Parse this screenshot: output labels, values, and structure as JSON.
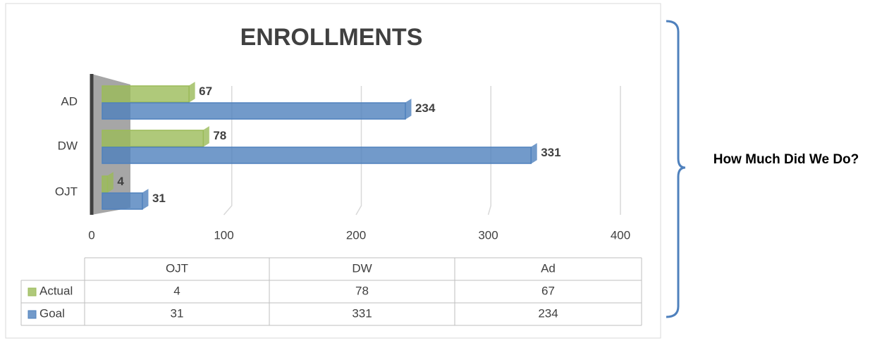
{
  "chart_data": {
    "type": "bar",
    "orientation": "horizontal",
    "title": "ENROLLMENTS",
    "categories": [
      "OJT",
      "DW",
      "AD"
    ],
    "table_categories": [
      "OJT",
      "DW",
      "Ad"
    ],
    "series": [
      {
        "name": "Actual",
        "color": "#9bbb59",
        "values": [
          4,
          78,
          67
        ]
      },
      {
        "name": "Goal",
        "color": "#4f81bd",
        "values": [
          31,
          331,
          234
        ]
      }
    ],
    "xlim": [
      0,
      400
    ],
    "xticks": [
      0,
      100,
      200,
      300,
      400
    ],
    "grid": true,
    "side_text": "How Much Did We Do?"
  }
}
